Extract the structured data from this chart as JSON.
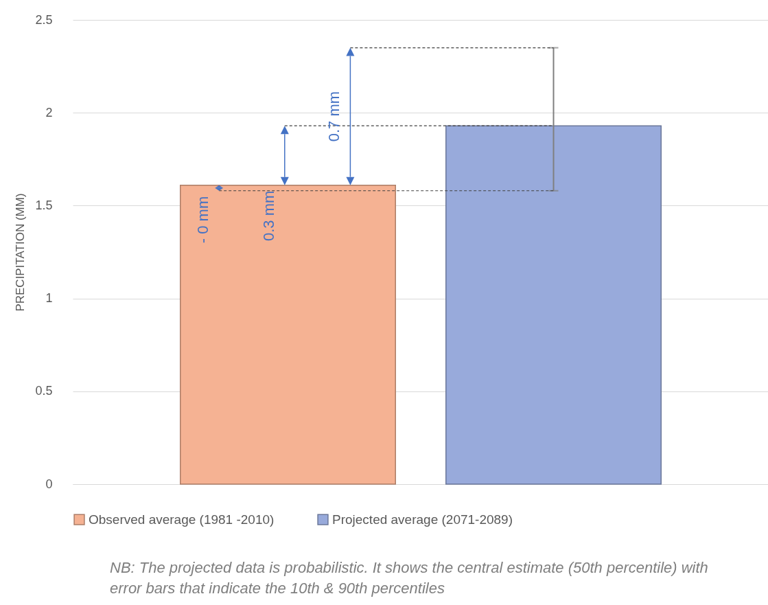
{
  "chart_data": {
    "type": "bar",
    "categories": [
      null,
      null
    ],
    "series": [
      {
        "name": "Observed average (1981 -2010)",
        "color": "#f5b293",
        "values": [
          1.61,
          null
        ]
      },
      {
        "name": "Projected average (2071-2089)",
        "color": "#98aadb",
        "values": [
          null,
          1.93
        ],
        "errors": [
          null,
          [
            1.58,
            2.35
          ]
        ]
      }
    ],
    "ylabel": "PRECIPITATION (MM)",
    "ylim": [
      0,
      2.5
    ],
    "yticks": [
      0,
      0.5,
      1,
      1.5,
      2,
      2.5
    ],
    "grid": "y",
    "legend": "bottom",
    "annotations": [
      "- 0 mm",
      "0.3 mm",
      "0.7 mm",
      "NB: The projected data is probabilistic. It shows the central estimate (50th percentile) with error bars that indicate the 10th & 90th percentiles"
    ]
  }
}
